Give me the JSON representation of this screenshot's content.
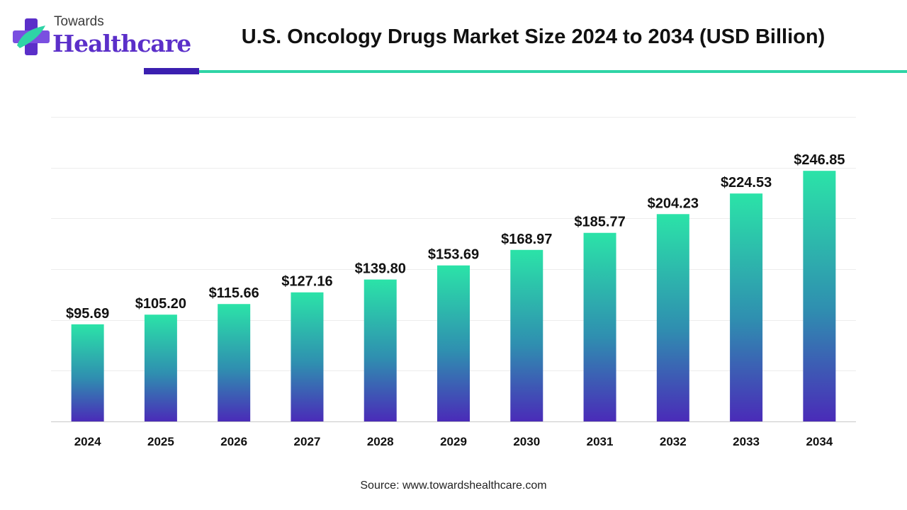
{
  "brand": {
    "top_text": "Towards",
    "main_text": "Healthcare",
    "colors": {
      "purple": "#5b2fc9",
      "teal": "#2fd4a6",
      "dark": "#3b1fb0"
    }
  },
  "source": "Source: www.towardshealthcare.com",
  "chart_data": {
    "type": "bar",
    "title": "U.S. Oncology Drugs Market Size 2024 to 2034 (USD Billion)",
    "xlabel": "",
    "ylabel": "",
    "categories": [
      "2024",
      "2025",
      "2026",
      "2027",
      "2028",
      "2029",
      "2030",
      "2031",
      "2032",
      "2033",
      "2034"
    ],
    "values": [
      95.69,
      105.2,
      115.66,
      127.16,
      139.8,
      153.69,
      168.97,
      185.77,
      204.23,
      224.53,
      246.85
    ],
    "value_labels": [
      "$95.69",
      "$105.20",
      "$115.66",
      "$127.16",
      "$139.80",
      "$153.69",
      "$168.97",
      "$185.77",
      "$204.23",
      "$224.53",
      "$246.85"
    ],
    "ylim": [
      0,
      300
    ],
    "grid": true,
    "legend": "none",
    "bar_gradient": {
      "top": "#2be3a8",
      "middle": "#2f8fb0",
      "bottom": "#4a2bb8"
    }
  }
}
